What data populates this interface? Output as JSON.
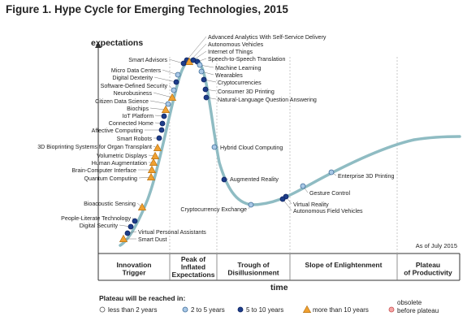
{
  "figure_title": "Figure 1. Hype Cycle for Emerging Technologies, 2015",
  "chart_data": {
    "type": "scatter",
    "title": "Hype Cycle for Emerging Technologies, 2015",
    "ylabel": "expectations",
    "xlabel": "time",
    "note": "As of July 2015",
    "phases": [
      "Innovation Trigger",
      "Peak of Inflated Expectations",
      "Trough of Disillusionment",
      "Slope of Enlightenment",
      "Plateau of Productivity"
    ],
    "legend_title": "Plateau will be reached in:",
    "legend": [
      {
        "key": "lt2",
        "label": "less than 2 years",
        "color": "#ffffff"
      },
      {
        "key": "2to5",
        "label": "2 to 5 years",
        "color": "#a9c8e6"
      },
      {
        "key": "5to10",
        "label": "5 to 10 years",
        "color": "#1d3d8a"
      },
      {
        "key": "gt10",
        "label": "more than 10 years",
        "color": "#f0a030"
      },
      {
        "key": "obsolete",
        "label": "obsolete before plateau",
        "color": "#f4a6a6"
      }
    ],
    "series": [
      {
        "name": "Advanced Analytics With Self-Service Delivery",
        "phase": "Peak of Inflated Expectations",
        "plateau": "5to10"
      },
      {
        "name": "Autonomous Vehicles",
        "phase": "Peak of Inflated Expectations",
        "plateau": "gt10"
      },
      {
        "name": "Internet of Things",
        "phase": "Peak of Inflated Expectations",
        "plateau": "5to10"
      },
      {
        "name": "Speech-to-Speech Translation",
        "phase": "Peak of Inflated Expectations",
        "plateau": "5to10"
      },
      {
        "name": "Machine Learning",
        "phase": "Peak of Inflated Expectations",
        "plateau": "2to5"
      },
      {
        "name": "Wearables",
        "phase": "Peak of Inflated Expectations",
        "plateau": "2to5"
      },
      {
        "name": "Cryptocurrencies",
        "phase": "Peak of Inflated Expectations",
        "plateau": "5to10"
      },
      {
        "name": "Consumer 3D Printing",
        "phase": "Peak of Inflated Expectations",
        "plateau": "5to10"
      },
      {
        "name": "Natural-Language Question Answering",
        "phase": "Peak of Inflated Expectations",
        "plateau": "5to10"
      },
      {
        "name": "Smart Advisors",
        "phase": "Peak of Inflated Expectations",
        "plateau": "5to10"
      },
      {
        "name": "Micro Data Centers",
        "phase": "Innovation Trigger",
        "plateau": "2to5"
      },
      {
        "name": "Digital Dexterity",
        "phase": "Innovation Trigger",
        "plateau": "5to10"
      },
      {
        "name": "Software-Defined Security",
        "phase": "Innovation Trigger",
        "plateau": "2to5"
      },
      {
        "name": "Neurobusiness",
        "phase": "Innovation Trigger",
        "plateau": "gt10"
      },
      {
        "name": "Citizen Data Science",
        "phase": "Innovation Trigger",
        "plateau": "2to5"
      },
      {
        "name": "Biochips",
        "phase": "Innovation Trigger",
        "plateau": "gt10"
      },
      {
        "name": "IoT Platform",
        "phase": "Innovation Trigger",
        "plateau": "5to10"
      },
      {
        "name": "Connected Home",
        "phase": "Innovation Trigger",
        "plateau": "5to10"
      },
      {
        "name": "Affective Computing",
        "phase": "Innovation Trigger",
        "plateau": "5to10"
      },
      {
        "name": "Smart Robots",
        "phase": "Innovation Trigger",
        "plateau": "5to10"
      },
      {
        "name": "3D Bioprinting Systems for Organ Transplant",
        "phase": "Innovation Trigger",
        "plateau": "gt10"
      },
      {
        "name": "Volumetric Displays",
        "phase": "Innovation Trigger",
        "plateau": "gt10"
      },
      {
        "name": "Human Augmentation",
        "phase": "Innovation Trigger",
        "plateau": "gt10"
      },
      {
        "name": "Brain-Computer Interface",
        "phase": "Innovation Trigger",
        "plateau": "gt10"
      },
      {
        "name": "Quantum Computing",
        "phase": "Innovation Trigger",
        "plateau": "gt10"
      },
      {
        "name": "Bioacoustic Sensing",
        "phase": "Innovation Trigger",
        "plateau": "gt10"
      },
      {
        "name": "People-Literate Technology",
        "phase": "Innovation Trigger",
        "plateau": "5to10"
      },
      {
        "name": "Digital Security",
        "phase": "Innovation Trigger",
        "plateau": "5to10"
      },
      {
        "name": "Virtual Personal Assistants",
        "phase": "Innovation Trigger",
        "plateau": "5to10"
      },
      {
        "name": "Smart Dust",
        "phase": "Innovation Trigger",
        "plateau": "gt10"
      },
      {
        "name": "Hybrid Cloud Computing",
        "phase": "Trough of Disillusionment",
        "plateau": "2to5"
      },
      {
        "name": "Augmented Reality",
        "phase": "Trough of Disillusionment",
        "plateau": "5to10"
      },
      {
        "name": "Cryptocurrency Exchange",
        "phase": "Trough of Disillusionment",
        "plateau": "2to5"
      },
      {
        "name": "Virtual Reality",
        "phase": "Slope of Enlightenment",
        "plateau": "5to10"
      },
      {
        "name": "Autonomous Field Vehicles",
        "phase": "Slope of Enlightenment",
        "plateau": "5to10"
      },
      {
        "name": "Gesture Control",
        "phase": "Slope of Enlightenment",
        "plateau": "2to5"
      },
      {
        "name": "Enterprise 3D Printing",
        "phase": "Slope of Enlightenment",
        "plateau": "2to5"
      }
    ]
  }
}
